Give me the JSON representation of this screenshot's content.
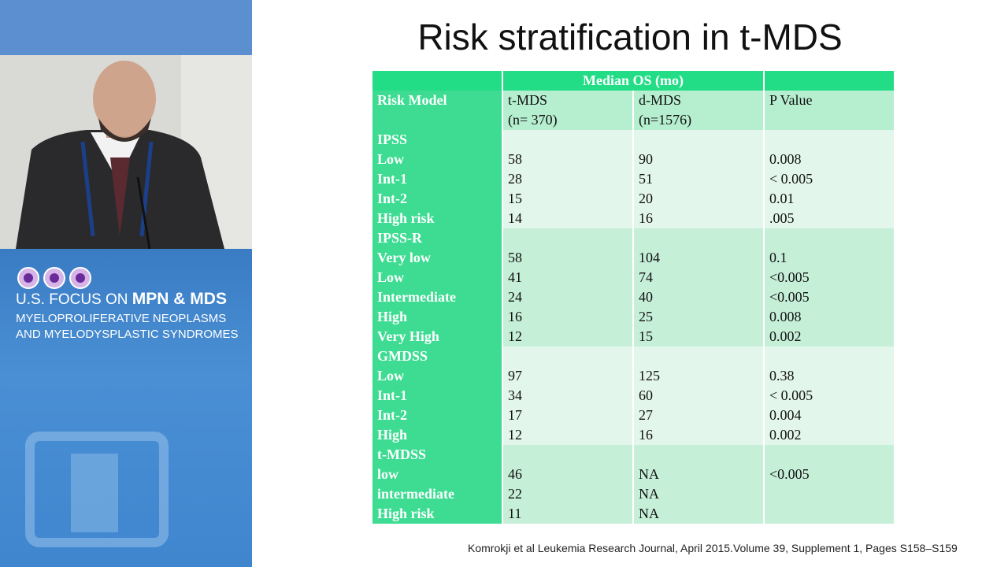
{
  "brand": {
    "line1_a": "U.S. FOCUS ON",
    "line1_b": "MPN & MDS",
    "line2": "MYELOPROLIFERATIVE NEOPLASMS",
    "line3": "AND MYELODYSPLASTIC SYNDROMES"
  },
  "slide": {
    "title": "Risk stratification in  t-MDS",
    "table": {
      "top_header": "Median OS (mo)",
      "columns": [
        [
          "Risk Model"
        ],
        [
          "t-MDS",
          "(n= 370)"
        ],
        [
          "d-MDS",
          "(n=1576)"
        ],
        [
          "P Value"
        ]
      ],
      "groups": [
        {
          "name": "IPSS",
          "rows": [
            [
              "Low",
              "58",
              "90",
              "0.008"
            ],
            [
              "Int-1",
              "28",
              "51",
              "< 0.005"
            ],
            [
              "Int-2",
              "15",
              "20",
              "0.01"
            ],
            [
              "High risk",
              "14",
              "16",
              ".005"
            ]
          ]
        },
        {
          "name": "IPSS-R",
          "rows": [
            [
              "Very low",
              "58",
              "104",
              "0.1"
            ],
            [
              "Low",
              "41",
              "74",
              "<0.005"
            ],
            [
              "Intermediate",
              "24",
              "40",
              "<0.005"
            ],
            [
              "High",
              "16",
              "25",
              "0.008"
            ],
            [
              "Very High",
              "12",
              "15",
              "0.002"
            ]
          ]
        },
        {
          "name": "GMDSS",
          "rows": [
            [
              "Low",
              "97",
              "125",
              "0.38"
            ],
            [
              "Int-1",
              "34",
              "60",
              "< 0.005"
            ],
            [
              "Int-2",
              "17",
              "27",
              "0.004"
            ],
            [
              "High",
              "12",
              "16",
              "0.002"
            ]
          ]
        },
        {
          "name": "t-MDSS",
          "rows": [
            [
              "low",
              "46",
              "NA",
              "<0.005"
            ],
            [
              "intermediate",
              "22",
              "NA",
              null
            ],
            [
              "High risk",
              "11",
              "NA",
              null
            ]
          ]
        }
      ]
    },
    "citation": "Komrokji et al Leukemia Research Journal, April 2015.Volume 39, Supplement 1, Pages S158–S159"
  }
}
